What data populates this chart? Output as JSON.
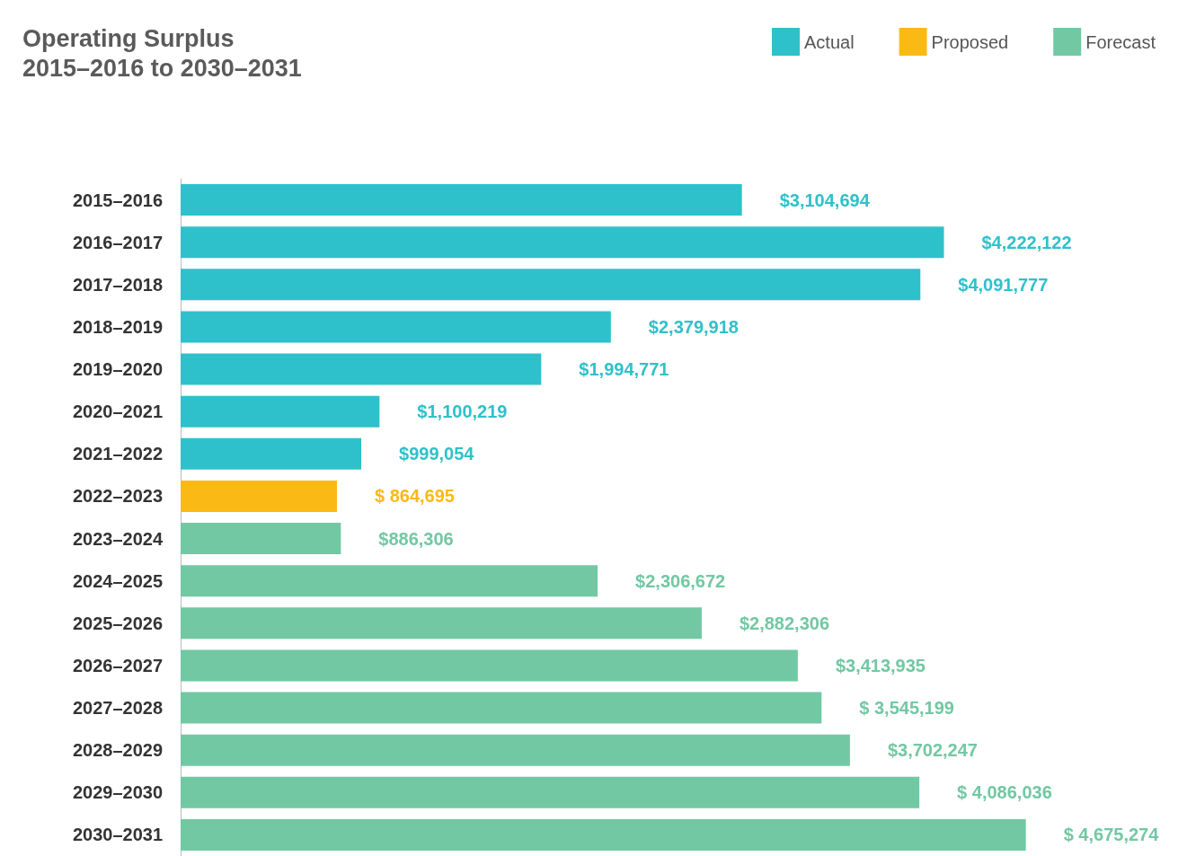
{
  "chart_data": {
    "type": "bar",
    "orientation": "horizontal",
    "title": "Operating Surplus",
    "subtitle": "2015–2016 to 2030–2031",
    "categories": [
      "2015–2016",
      "2016–2017",
      "2017–2018",
      "2018–2019",
      "2019–2020",
      "2020–2021",
      "2021–2022",
      "2022–2023",
      "2023–2024",
      "2024–2025",
      "2025–2026",
      "2026–2027",
      "2027–2028",
      "2028–2029",
      "2029–2030",
      "2030–2031"
    ],
    "series": [
      {
        "name": "Actual",
        "color": "#2ec1cb",
        "values": [
          3104694,
          4222122,
          4091777,
          2379918,
          1994771,
          1100219,
          999054,
          null,
          null,
          null,
          null,
          null,
          null,
          null,
          null,
          null
        ],
        "value_labels": [
          "$3,104,694",
          "$4,222,122",
          "$4,091,777",
          "$2,379,918",
          "$1,994,771",
          "$1,100,219",
          "$999,054",
          null,
          null,
          null,
          null,
          null,
          null,
          null,
          null,
          null
        ]
      },
      {
        "name": "Proposed",
        "color": "#fbb916",
        "values": [
          null,
          null,
          null,
          null,
          null,
          null,
          null,
          864695,
          null,
          null,
          null,
          null,
          null,
          null,
          null,
          null
        ],
        "value_labels": [
          null,
          null,
          null,
          null,
          null,
          null,
          null,
          "$ 864,695",
          null,
          null,
          null,
          null,
          null,
          null,
          null,
          null
        ]
      },
      {
        "name": "Forecast",
        "color": "#72c8a3",
        "values": [
          null,
          null,
          null,
          null,
          null,
          null,
          null,
          null,
          886306,
          2306672,
          2882306,
          3413935,
          3545199,
          3702247,
          4086036,
          4675274
        ],
        "value_labels": [
          null,
          null,
          null,
          null,
          null,
          null,
          null,
          null,
          "$886,306",
          "$2,306,672",
          "$2,882,306",
          "$3,413,935",
          "$ 3,545,199",
          "$3,702,247",
          "$ 4,086,036",
          "$ 4,675,274"
        ]
      }
    ],
    "legend": "top right"
  }
}
